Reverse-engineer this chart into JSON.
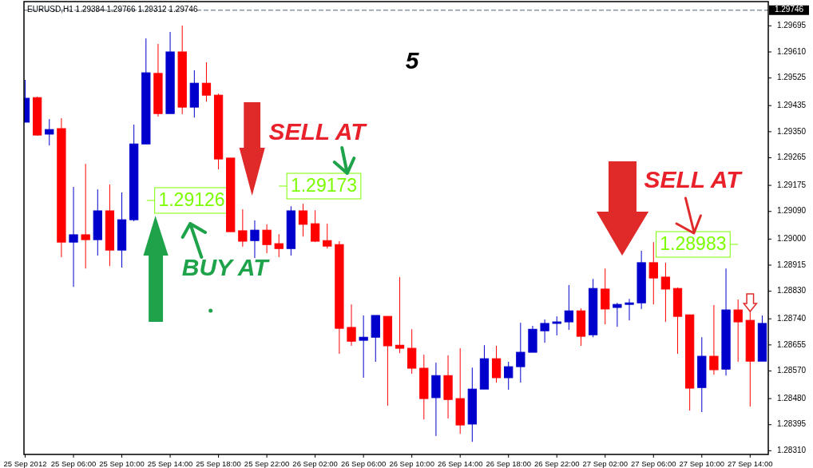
{
  "chart_data": {
    "type": "candlestick",
    "title": "EURUSD,H1  1.29384 1.29766 1.29312 1.29746",
    "x": [
      "2012-09-25T02:00",
      "2012-09-25T03:00",
      "2012-09-25T04:00",
      "2012-09-25T05:00",
      "2012-09-25T06:00",
      "2012-09-25T07:00",
      "2012-09-25T08:00",
      "2012-09-25T09:00",
      "2012-09-25T10:00",
      "2012-09-25T11:00",
      "2012-09-25T12:00",
      "2012-09-25T13:00",
      "2012-09-25T14:00",
      "2012-09-25T15:00",
      "2012-09-25T16:00",
      "2012-09-25T17:00",
      "2012-09-25T18:00",
      "2012-09-25T19:00",
      "2012-09-25T20:00",
      "2012-09-25T21:00",
      "2012-09-25T22:00",
      "2012-09-25T23:00",
      "2012-09-26T00:00",
      "2012-09-26T01:00",
      "2012-09-26T02:00",
      "2012-09-26T03:00",
      "2012-09-26T04:00",
      "2012-09-26T05:00",
      "2012-09-26T06:00",
      "2012-09-26T07:00",
      "2012-09-26T08:00",
      "2012-09-26T09:00",
      "2012-09-26T10:00",
      "2012-09-26T11:00",
      "2012-09-26T12:00",
      "2012-09-26T13:00",
      "2012-09-26T14:00",
      "2012-09-26T15:00",
      "2012-09-26T16:00",
      "2012-09-26T17:00",
      "2012-09-26T18:00",
      "2012-09-26T19:00",
      "2012-09-26T20:00",
      "2012-09-26T21:00",
      "2012-09-26T22:00",
      "2012-09-26T23:00",
      "2012-09-27T00:00",
      "2012-09-27T01:00",
      "2012-09-27T02:00",
      "2012-09-27T03:00",
      "2012-09-27T04:00",
      "2012-09-27T05:00",
      "2012-09-27T06:00",
      "2012-09-27T07:00",
      "2012-09-27T08:00",
      "2012-09-27T09:00",
      "2012-09-27T10:00",
      "2012-09-27T11:00",
      "2012-09-27T12:00",
      "2012-09-27T13:00",
      "2012-09-27T14:00",
      "2012-09-27T15:00"
    ],
    "ohlc": [
      [
        1.29381,
        1.29519,
        1.29381,
        1.29459
      ],
      [
        1.29461,
        1.29464,
        1.29337,
        1.29339
      ],
      [
        1.29342,
        1.29391,
        1.29305,
        1.29357
      ],
      [
        1.2936,
        1.29394,
        1.28941,
        1.2899
      ],
      [
        1.2899,
        1.2917,
        1.28844,
        1.29014
      ],
      [
        1.29014,
        1.29245,
        1.28904,
        1.28998
      ],
      [
        1.28998,
        1.29162,
        1.28946,
        1.29092
      ],
      [
        1.29092,
        1.29178,
        1.28912,
        1.28964
      ],
      [
        1.28964,
        1.29152,
        1.28907,
        1.29063
      ],
      [
        1.29063,
        1.29373,
        1.29058,
        1.2931
      ],
      [
        1.2931,
        1.29654,
        1.2931,
        1.29542
      ],
      [
        1.2954,
        1.29636,
        1.29399,
        1.29409
      ],
      [
        1.29409,
        1.29675,
        1.29409,
        1.2961
      ],
      [
        1.2961,
        1.29696,
        1.29407,
        1.2943
      ],
      [
        1.2943,
        1.2955,
        1.29396,
        1.29508
      ],
      [
        1.29508,
        1.29576,
        1.29448,
        1.29469
      ],
      [
        1.29469,
        1.29474,
        1.29227,
        1.29261
      ],
      [
        1.29264,
        1.29264,
        1.29024,
        1.29024
      ],
      [
        1.29027,
        1.29097,
        1.28975,
        1.28993
      ],
      [
        1.28995,
        1.29061,
        1.28938,
        1.29029
      ],
      [
        1.29029,
        1.29048,
        1.28954,
        1.28982
      ],
      [
        1.28985,
        1.29016,
        1.28941,
        1.28969
      ],
      [
        1.28969,
        1.29107,
        1.28946,
        1.29092
      ],
      [
        1.29092,
        1.29115,
        1.29008,
        1.29048
      ],
      [
        1.2905,
        1.29094,
        1.2899,
        1.28993
      ],
      [
        1.28995,
        1.2905,
        1.28969,
        1.28977
      ],
      [
        1.28982,
        1.28993,
        1.28626,
        1.28709
      ],
      [
        1.28712,
        1.28787,
        1.28652,
        1.28667
      ],
      [
        1.2867,
        1.28751,
        1.28548,
        1.2868
      ],
      [
        1.2868,
        1.28751,
        1.286,
        1.28751
      ],
      [
        1.28748,
        1.28748,
        1.28457,
        1.28652
      ],
      [
        1.28654,
        1.28876,
        1.28628,
        1.28644
      ],
      [
        1.28644,
        1.28706,
        1.28561,
        1.28579
      ],
      [
        1.28579,
        1.28623,
        1.28412,
        1.2848
      ],
      [
        1.28483,
        1.28597,
        1.28358,
        1.28555
      ],
      [
        1.28555,
        1.28621,
        1.28415,
        1.28477
      ],
      [
        1.2848,
        1.28644,
        1.28365,
        1.28394
      ],
      [
        1.28397,
        1.28581,
        1.28339,
        1.28511
      ],
      [
        1.28511,
        1.28654,
        1.28511,
        1.2861
      ],
      [
        1.2861,
        1.28652,
        1.28532,
        1.28548
      ],
      [
        1.28548,
        1.286,
        1.28509,
        1.28584
      ],
      [
        1.28584,
        1.28727,
        1.28532,
        1.28631
      ],
      [
        1.28631,
        1.28717,
        1.28631,
        1.28706
      ],
      [
        1.28701,
        1.28738,
        1.28662,
        1.28725
      ],
      [
        1.28725,
        1.28748,
        1.28686,
        1.2873
      ],
      [
        1.2873,
        1.2885,
        1.28704,
        1.28766
      ],
      [
        1.28766,
        1.28774,
        1.28652,
        1.28683
      ],
      [
        1.28688,
        1.2887,
        1.2868,
        1.28839
      ],
      [
        1.28837,
        1.28904,
        1.28722,
        1.28772
      ],
      [
        1.28777,
        1.28792,
        1.28714,
        1.28787
      ],
      [
        1.28787,
        1.28805,
        1.28735,
        1.28792
      ],
      [
        1.28792,
        1.28962,
        1.28772,
        1.28923
      ],
      [
        1.28923,
        1.2899,
        1.28787,
        1.28873
      ],
      [
        1.28876,
        1.28923,
        1.2873,
        1.28837
      ],
      [
        1.28839,
        1.28842,
        1.28626,
        1.28748
      ],
      [
        1.28753,
        1.28753,
        1.28441,
        1.28514
      ],
      [
        1.28516,
        1.2868,
        1.28436,
        1.28618
      ],
      [
        1.28618,
        1.28785,
        1.28558,
        1.28574
      ],
      [
        1.28576,
        1.28904,
        1.28555,
        1.28769
      ],
      [
        1.28769,
        1.28803,
        1.286,
        1.2873
      ],
      [
        1.28735,
        1.28764,
        1.28454,
        1.28602
      ],
      [
        1.28602,
        1.28751,
        1.28602,
        1.28725
      ]
    ],
    "colors": [
      "#0000cc",
      "#ff0000",
      "#0000cc",
      "#ff0000",
      "#0000cc",
      "#ff0000",
      "#0000cc",
      "#ff0000",
      "#0000cc",
      "#0000cc",
      "#0000cc",
      "#ff0000",
      "#0000cc",
      "#ff0000",
      "#0000cc",
      "#ff0000",
      "#ff0000",
      "#ff0000",
      "#ff0000",
      "#0000cc",
      "#ff0000",
      "#ff0000",
      "#0000cc",
      "#ff0000",
      "#ff0000",
      "#ff0000",
      "#ff0000",
      "#ff0000",
      "#0000cc",
      "#0000cc",
      "#ff0000",
      "#ff0000",
      "#ff0000",
      "#ff0000",
      "#0000cc",
      "#ff0000",
      "#ff0000",
      "#0000cc",
      "#0000cc",
      "#ff0000",
      "#0000cc",
      "#0000cc",
      "#0000cc",
      "#0000cc",
      "#0000cc",
      "#0000cc",
      "#ff0000",
      "#0000cc",
      "#ff0000",
      "#0000cc",
      "#0000cc",
      "#0000cc",
      "#ff0000",
      "#ff0000",
      "#ff0000",
      "#ff0000",
      "#0000cc",
      "#ff0000",
      "#0000cc",
      "#ff0000",
      "#ff0000",
      "#0000cc"
    ],
    "xlim": [
      "2012-09-25T01:54",
      "2012-09-27T15:30"
    ],
    "xticks": [
      {
        "value": "2012-09-25T02:00",
        "label": "25 Sep 2012"
      },
      {
        "value": "2012-09-25T06:00",
        "label": "25 Sep 06:00"
      },
      {
        "value": "2012-09-25T10:00",
        "label": "25 Sep 10:00"
      },
      {
        "value": "2012-09-25T14:00",
        "label": "25 Sep 14:00"
      },
      {
        "value": "2012-09-25T18:00",
        "label": "25 Sep 18:00"
      },
      {
        "value": "2012-09-25T22:00",
        "label": "25 Sep 22:00"
      },
      {
        "value": "2012-09-26T02:00",
        "label": "26 Sep 02:00"
      },
      {
        "value": "2012-09-26T06:00",
        "label": "26 Sep 06:00"
      },
      {
        "value": "2012-09-26T10:00",
        "label": "26 Sep 10:00"
      },
      {
        "value": "2012-09-26T14:00",
        "label": "26 Sep 14:00"
      },
      {
        "value": "2012-09-26T18:00",
        "label": "26 Sep 18:00"
      },
      {
        "value": "2012-09-26T22:00",
        "label": "26 Sep 22:00"
      },
      {
        "value": "2012-09-27T02:00",
        "label": "27 Sep 02:00"
      },
      {
        "value": "2012-09-27T06:00",
        "label": "27 Sep 06:00"
      },
      {
        "value": "2012-09-27T10:00",
        "label": "27 Sep 10:00"
      },
      {
        "value": "2012-09-27T14:00",
        "label": "27 Sep 14:00"
      }
    ],
    "ylim": [
      1.28298,
      1.29774
    ],
    "yticks": [
      {
        "value": 1.2831,
        "label": "1.28310"
      },
      {
        "value": 1.28395,
        "label": "1.28395"
      },
      {
        "value": 1.2848,
        "label": "1.28480"
      },
      {
        "value": 1.2857,
        "label": "1.28570"
      },
      {
        "value": 1.28655,
        "label": "1.28655"
      },
      {
        "value": 1.2874,
        "label": "1.28740"
      },
      {
        "value": 1.2883,
        "label": "1.28830"
      },
      {
        "value": 1.28915,
        "label": "1.28915"
      },
      {
        "value": 1.29,
        "label": "1.29000"
      },
      {
        "value": 1.2909,
        "label": "1.29090"
      },
      {
        "value": 1.29175,
        "label": "1.29175"
      },
      {
        "value": 1.29265,
        "label": "1.29265"
      },
      {
        "value": 1.2935,
        "label": "1.29350"
      },
      {
        "value": 1.29435,
        "label": "1.29435"
      },
      {
        "value": 1.29525,
        "label": "1.29525"
      },
      {
        "value": 1.2961,
        "label": "1.29610"
      },
      {
        "value": 1.29695,
        "label": "1.29695"
      }
    ],
    "ref_lines": [
      {
        "axis": "y",
        "value": 1.29746,
        "label": "1.29746",
        "color": "#8a96a6",
        "line_style": "dashed"
      }
    ],
    "annotations": [
      "5",
      "SELL AT",
      "BUY AT",
      "SELL AT",
      "1.29126",
      "1.29173",
      "1.28983"
    ]
  }
}
